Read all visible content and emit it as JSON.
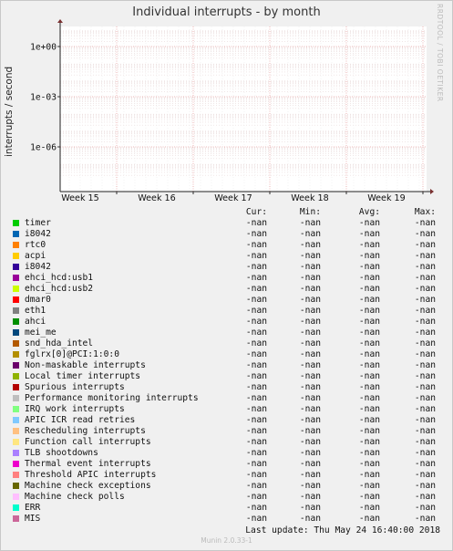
{
  "chart_data": {
    "type": "line",
    "title": "Individual interrupts - by month",
    "ylabel": "interrupts / second",
    "y_scale": "log",
    "y_ticks": [
      "1e+00",
      "1e-03",
      "1e-06"
    ],
    "x_ticks": [
      "Week 15",
      "Week 16",
      "Week 17",
      "Week 18",
      "Week 19"
    ],
    "grid": true,
    "series": []
  },
  "side_label": "RRDTOOL / TOBI OETIKER",
  "legend": {
    "headers": [
      "Cur:",
      "Min:",
      "Avg:",
      "Max:"
    ],
    "items": [
      {
        "name": "timer",
        "color": "#00cc00",
        "cur": "-nan",
        "min": "-nan",
        "avg": "-nan",
        "max": "-nan"
      },
      {
        "name": "i8042",
        "color": "#0066b3",
        "cur": "-nan",
        "min": "-nan",
        "avg": "-nan",
        "max": "-nan"
      },
      {
        "name": "rtc0",
        "color": "#ff8000",
        "cur": "-nan",
        "min": "-nan",
        "avg": "-nan",
        "max": "-nan"
      },
      {
        "name": "acpi",
        "color": "#ffcc00",
        "cur": "-nan",
        "min": "-nan",
        "avg": "-nan",
        "max": "-nan"
      },
      {
        "name": "i8042",
        "color": "#330099",
        "cur": "-nan",
        "min": "-nan",
        "avg": "-nan",
        "max": "-nan"
      },
      {
        "name": "ehci_hcd:usb1",
        "color": "#990099",
        "cur": "-nan",
        "min": "-nan",
        "avg": "-nan",
        "max": "-nan"
      },
      {
        "name": "ehci_hcd:usb2",
        "color": "#ccff00",
        "cur": "-nan",
        "min": "-nan",
        "avg": "-nan",
        "max": "-nan"
      },
      {
        "name": "dmar0",
        "color": "#ff0000",
        "cur": "-nan",
        "min": "-nan",
        "avg": "-nan",
        "max": "-nan"
      },
      {
        "name": "eth1",
        "color": "#808080",
        "cur": "-nan",
        "min": "-nan",
        "avg": "-nan",
        "max": "-nan"
      },
      {
        "name": "ahci",
        "color": "#008f00",
        "cur": "-nan",
        "min": "-nan",
        "avg": "-nan",
        "max": "-nan"
      },
      {
        "name": "mei_me",
        "color": "#00487d",
        "cur": "-nan",
        "min": "-nan",
        "avg": "-nan",
        "max": "-nan"
      },
      {
        "name": "snd_hda_intel",
        "color": "#b35a00",
        "cur": "-nan",
        "min": "-nan",
        "avg": "-nan",
        "max": "-nan"
      },
      {
        "name": "fglrx[0]@PCI:1:0:0",
        "color": "#b38f00",
        "cur": "-nan",
        "min": "-nan",
        "avg": "-nan",
        "max": "-nan"
      },
      {
        "name": "Non-maskable interrupts",
        "color": "#6b006b",
        "cur": "-nan",
        "min": "-nan",
        "avg": "-nan",
        "max": "-nan"
      },
      {
        "name": "Local timer interrupts",
        "color": "#8fb300",
        "cur": "-nan",
        "min": "-nan",
        "avg": "-nan",
        "max": "-nan"
      },
      {
        "name": "Spurious interrupts",
        "color": "#b30000",
        "cur": "-nan",
        "min": "-nan",
        "avg": "-nan",
        "max": "-nan"
      },
      {
        "name": "Performance monitoring interrupts",
        "color": "#bebebe",
        "cur": "-nan",
        "min": "-nan",
        "avg": "-nan",
        "max": "-nan"
      },
      {
        "name": "IRQ work interrupts",
        "color": "#80ff80",
        "cur": "-nan",
        "min": "-nan",
        "avg": "-nan",
        "max": "-nan"
      },
      {
        "name": "APIC ICR read retries",
        "color": "#80c9ff",
        "cur": "-nan",
        "min": "-nan",
        "avg": "-nan",
        "max": "-nan"
      },
      {
        "name": "Rescheduling interrupts",
        "color": "#ffc080",
        "cur": "-nan",
        "min": "-nan",
        "avg": "-nan",
        "max": "-nan"
      },
      {
        "name": "Function call interrupts",
        "color": "#ffe680",
        "cur": "-nan",
        "min": "-nan",
        "avg": "-nan",
        "max": "-nan"
      },
      {
        "name": "TLB shootdowns",
        "color": "#aa80ff",
        "cur": "-nan",
        "min": "-nan",
        "avg": "-nan",
        "max": "-nan"
      },
      {
        "name": "Thermal event interrupts",
        "color": "#ee00cc",
        "cur": "-nan",
        "min": "-nan",
        "avg": "-nan",
        "max": "-nan"
      },
      {
        "name": "Threshold APIC interrupts",
        "color": "#ff8080",
        "cur": "-nan",
        "min": "-nan",
        "avg": "-nan",
        "max": "-nan"
      },
      {
        "name": "Machine check exceptions",
        "color": "#666600",
        "cur": "-nan",
        "min": "-nan",
        "avg": "-nan",
        "max": "-nan"
      },
      {
        "name": "Machine check polls",
        "color": "#ffbfff",
        "cur": "-nan",
        "min": "-nan",
        "avg": "-nan",
        "max": "-nan"
      },
      {
        "name": "ERR",
        "color": "#00ffcc",
        "cur": "-nan",
        "min": "-nan",
        "avg": "-nan",
        "max": "-nan"
      },
      {
        "name": "MIS",
        "color": "#cc6699",
        "cur": "-nan",
        "min": "-nan",
        "avg": "-nan",
        "max": "-nan"
      }
    ]
  },
  "last_update": "Last update:  Thu May 24 16:40:00 2018",
  "footer": "Munin 2.0.33-1"
}
